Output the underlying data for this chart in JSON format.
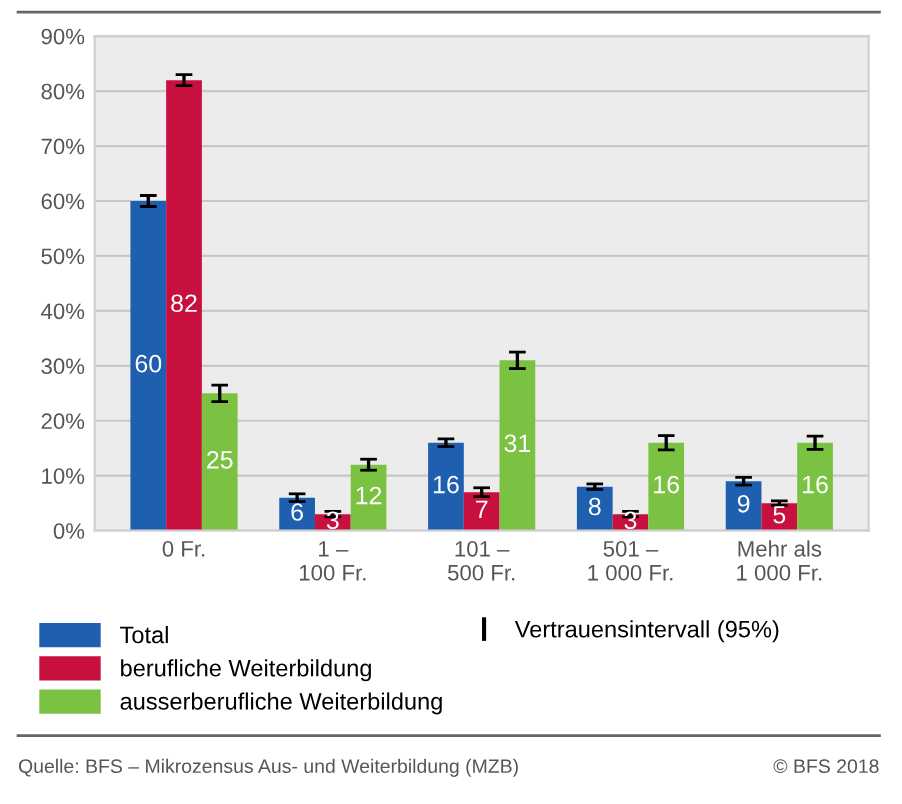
{
  "chart_data": {
    "type": "bar",
    "categories": [
      "0 Fr.",
      "1 –\n100 Fr.",
      "101 –\n500 Fr.",
      "501 –\n1 000 Fr.",
      "Mehr als\n1 000 Fr."
    ],
    "series": [
      {
        "name": "Total",
        "color": "#1f5fb0",
        "values": [
          60,
          6,
          16,
          8,
          9
        ],
        "errors": [
          [
            59,
            61
          ],
          [
            5.3,
            6.7
          ],
          [
            15.3,
            16.7
          ],
          [
            7.5,
            8.5
          ],
          [
            8.3,
            9.7
          ]
        ]
      },
      {
        "name": "berufliche Weiterbildung",
        "color": "#c8103e",
        "values": [
          82,
          3,
          7,
          3,
          5
        ],
        "errors": [
          [
            81,
            83
          ],
          [
            2.5,
            3.5
          ],
          [
            6.2,
            7.8
          ],
          [
            2.5,
            3.5
          ],
          [
            4.6,
            5.4
          ]
        ]
      },
      {
        "name": "ausserberufliche Weiterbildung",
        "color": "#7cc242",
        "values": [
          25,
          12,
          31,
          16,
          16
        ],
        "errors": [
          [
            23.5,
            26.5
          ],
          [
            11,
            13
          ],
          [
            29.5,
            32.5
          ],
          [
            14.7,
            17.3
          ],
          [
            14.8,
            17.2
          ]
        ]
      }
    ],
    "ylim": [
      0,
      90
    ],
    "yticks": [
      {
        "value": 0,
        "label": "0%"
      },
      {
        "value": 10,
        "label": "10%"
      },
      {
        "value": 20,
        "label": "20%"
      },
      {
        "value": 30,
        "label": "30%"
      },
      {
        "value": 40,
        "label": "40%"
      },
      {
        "value": 50,
        "label": "50%"
      },
      {
        "value": 60,
        "label": "60%"
      },
      {
        "value": 70,
        "label": "70%"
      },
      {
        "value": 80,
        "label": "80%"
      },
      {
        "value": 90,
        "label": "90%"
      }
    ],
    "grid": "y",
    "legend": "bottom",
    "data_labels": true,
    "annotations": [
      "Vertrauensintervall (95%)",
      "Quelle: BFS – Mikrozensus Aus- und Weiterbildung (MZB)",
      "© BFS 2018"
    ]
  }
}
